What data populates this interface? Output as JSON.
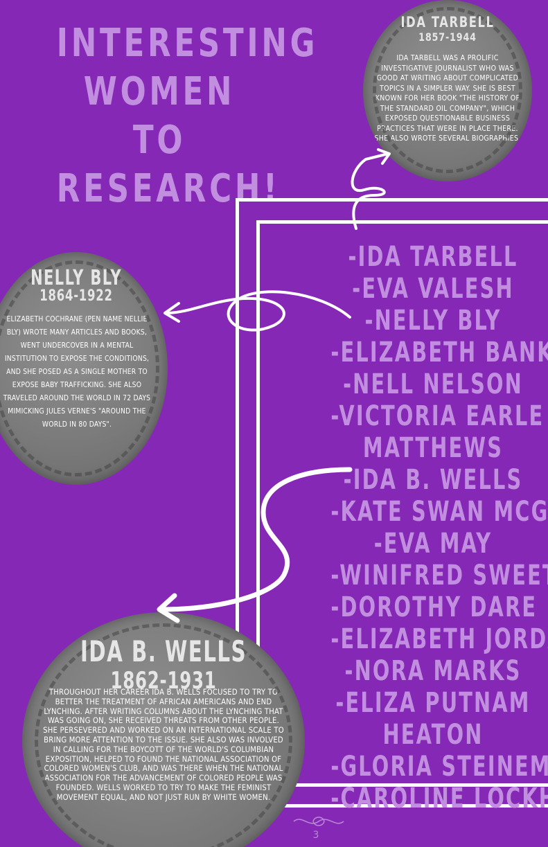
{
  "title": {
    "line1": "Interesting",
    "line2": "Women to",
    "line3": "Research!"
  },
  "names_list": [
    "-Ida Tarbell",
    "-Eva Valesh",
    "-Nelly Bly",
    "-Elizabeth Banks",
    "-Nell Nelson",
    "-Victoria Earle",
    "Matthews",
    "-Ida B. Wells",
    "-Kate Swan McGuirk",
    "-Eva May",
    "-Winifred Sweet",
    "-Dorothy Dare",
    "-Elizabeth Jordan",
    "-Nora Marks",
    "-Eliza Putnam",
    "Heaton",
    "-Gloria Steinem",
    "-Caroline Lockhart"
  ],
  "profiles": {
    "tarbell": {
      "name": "Ida Tarbell",
      "dates": "1857-1944",
      "bio": "Ida Tarbell was a prolific investigative journalist who was good at writing about complicated topics in a simpler way. She is best known for her book \"The History of the Standard Oil Company\", which exposed questionable business practices that were in place there. She also wrote several biographies."
    },
    "bly": {
      "name": "Nelly Bly",
      "dates": "1864-1922",
      "bio": "Elizabeth Cochrane (pen name Nellie Bly) wrote many articles and books, went undercover in a mental institution to expose the conditions, and she posed as a single mother to expose baby trafficking. She also traveled around the world in 72 days mimicking Jules Verne's \"Around the World in 80 Days\"."
    },
    "wells": {
      "name": "Ida B. Wells",
      "dates": "1862-1931",
      "bio": "Throughout her career Ida B. Wells focused to try to better the treatment of African Americans and end lynching. After writing columns about the lynching that was going on, she received threats from other people. She persevered and worked on an international scale to bring more attention to the issue. She also was involved in calling for the boycott of the World's Columbian Exposition, helped to found the National Association of Colored Women's Club, and was there when the National Association for the Advancement of Colored People was founded. Wells worked to try to make the feminist movement equal, and not just run by white women."
    }
  },
  "page_number": "3",
  "colors": {
    "background": "#8628b6",
    "accent_text": "#c28fe0",
    "circle": "#7b7b7b",
    "frame": "#ffffff"
  }
}
